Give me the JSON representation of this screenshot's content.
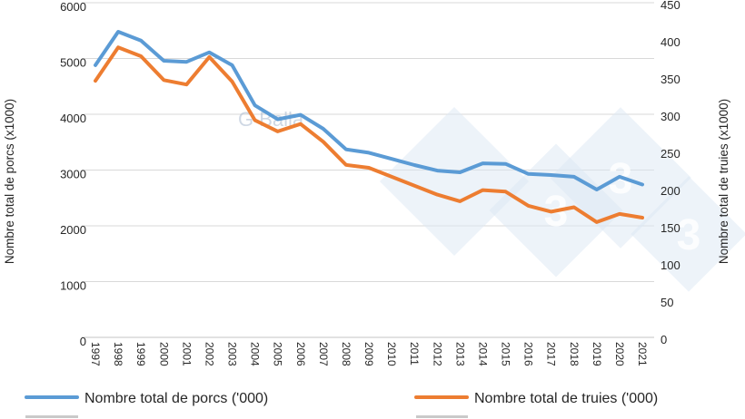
{
  "watermark": {
    "author": "G Balla",
    "brand_digit": "3"
  },
  "chart_data": {
    "type": "line",
    "x": [
      1997,
      1998,
      1999,
      2000,
      2001,
      2002,
      2003,
      2004,
      2005,
      2006,
      2007,
      2008,
      2009,
      2010,
      2011,
      2012,
      2013,
      2014,
      2015,
      2016,
      2017,
      2018,
      2019,
      2020,
      2021
    ],
    "series": [
      {
        "name": "Nombre total de porcs ('000)",
        "axis": "left",
        "color": "#5B9BD5",
        "values": [
          4880,
          5480,
          5320,
          4960,
          4940,
          5110,
          4880,
          4160,
          3910,
          3990,
          3740,
          3370,
          3310,
          3200,
          3090,
          2990,
          2960,
          3120,
          3110,
          2930,
          2910,
          2880,
          2650,
          2880,
          2740
        ]
      },
      {
        "name": "Nombre total de truies ('000)",
        "axis": "right",
        "color": "#ED7D31",
        "values": [
          345,
          390,
          378,
          346,
          340,
          377,
          344,
          292,
          277,
          287,
          263,
          232,
          228,
          216,
          204,
          192,
          183,
          198,
          196,
          177,
          169,
          175,
          155,
          166,
          161
        ]
      }
    ],
    "left_axis": {
      "label": "Nombre total de porcs (x1000)",
      "min": 0,
      "max": 6000,
      "step": 1000,
      "ticks": [
        0,
        1000,
        2000,
        3000,
        4000,
        5000,
        6000
      ]
    },
    "right_axis": {
      "label": "Nombre total de truies (x1000)",
      "min": 0,
      "max": 450,
      "step": 50,
      "ticks": [
        0,
        50,
        100,
        150,
        200,
        250,
        300,
        350,
        400,
        450
      ]
    },
    "grid": true,
    "legend_position": "bottom"
  },
  "colors": {
    "grid": "#d9d9d9",
    "text": "#262626",
    "porcs": "#5B9BD5",
    "truies": "#ED7D31"
  }
}
